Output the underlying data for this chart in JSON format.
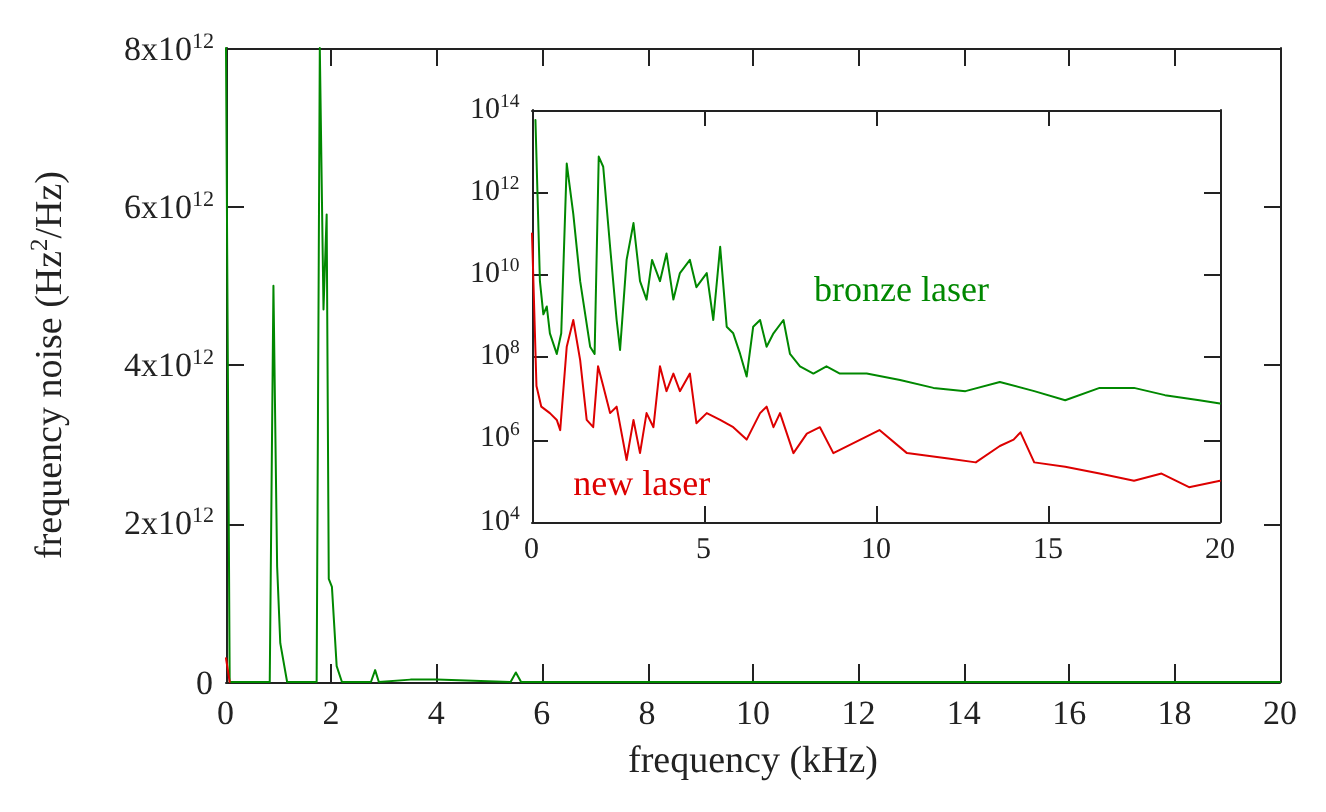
{
  "chart_data": [
    {
      "type": "line",
      "xlabel": "frequency (kHz)",
      "ylabel": "frequency noise (Hz$^{2}$/Hz)",
      "xlim": [
        0,
        20
      ],
      "ylim": [
        0,
        8000000000000.0
      ],
      "xticks": [
        0,
        2,
        4,
        6,
        8,
        10,
        12,
        14,
        16,
        18,
        20
      ],
      "yticks": [
        0,
        {
          "value": 2000000000000.0,
          "label": "2x10$^{12}$"
        },
        {
          "value": 4000000000000.0,
          "label": "4x10$^{12}$"
        },
        {
          "value": 6000000000000.0,
          "label": "6x10$^{12}$"
        },
        {
          "value": 8000000000000.0,
          "label": "8x10$^{12}$"
        }
      ],
      "grid": false,
      "legend": false,
      "marker": "none",
      "series": [
        {
          "color": "#008800",
          "x": [
            0,
            0.07,
            0.83,
            0.9,
            0.97,
            1.03,
            1.16,
            1.72,
            1.78,
            1.85,
            1.91,
            1.95,
            2.01,
            2.1,
            2.2,
            2.75,
            2.83,
            2.9,
            3.5,
            4,
            5.4,
            5.5,
            5.6,
            20
          ],
          "values": [
            8000000000000.0,
            0,
            0,
            5000000000000.0,
            1460000000000.0,
            490000000000.0,
            0,
            0,
            8000000000000.0,
            4700000000000.0,
            5900000000000.0,
            1300000000000.0,
            1200000000000.0,
            200000000000.0,
            0,
            0,
            150000000000.0,
            0,
            30000000000.0,
            30000000000.0,
            0,
            120000000000.0,
            0,
            0
          ]
        },
        {
          "color": "#dd0000",
          "x": [
            0,
            0.07
          ],
          "values": [
            300000000000.0,
            0
          ]
        }
      ]
    },
    {
      "type": "line",
      "log": true,
      "xlim": [
        0,
        20
      ],
      "ylim": [
        10000.0,
        100000000000000.0
      ],
      "xticks": [
        0,
        5,
        10,
        15,
        20
      ],
      "yticks": [
        {
          "value": 10000.0,
          "label": "10$^{4}$"
        },
        {
          "value": 1000000.0,
          "label": "10$^{6}$"
        },
        {
          "value": 100000000.0,
          "label": "10$^{8}$"
        },
        {
          "value": 10000000000.0,
          "label": "10$^{10}$"
        },
        {
          "value": 1000000000000.0,
          "label": "10$^{12}$"
        },
        {
          "value": 100000000000000.0,
          "label": "10$^{14}$"
        }
      ],
      "grid": false,
      "legend": false,
      "marker": "none",
      "series": [
        {
          "name": "bronze laser",
          "color": "#008800",
          "x": [
            0.1,
            0.23,
            0.33,
            0.43,
            0.52,
            0.72,
            0.85,
            1.01,
            1.2,
            1.4,
            1.69,
            1.82,
            1.94,
            2.07,
            2.27,
            2.46,
            2.56,
            2.75,
            2.95,
            3.14,
            3.33,
            3.49,
            3.72,
            3.91,
            4.11,
            4.3,
            4.59,
            4.78,
            5.08,
            5.27,
            5.47,
            5.66,
            5.85,
            6.05,
            6.24,
            6.43,
            6.63,
            6.82,
            7.02,
            7.31,
            7.5,
            7.79,
            8.18,
            8.56,
            8.95,
            9.73,
            10.7,
            11.67,
            12.6,
            13.6,
            14.6,
            15.5,
            16.5,
            17.5,
            18.4,
            19.4,
            20
          ],
          "values": [
            57000000000000.0,
            7000000000.0,
            1100000000.0,
            1700000000.0,
            380000000.0,
            120000000.0,
            380000000.0,
            5000000000000.0,
            300000000000.0,
            7000000000.0,
            180000000.0,
            120000000.0,
            7400000000000.0,
            4200000000000.0,
            48000000000.0,
            800000000.0,
            150000000.0,
            23000000000.0,
            180000000000.0,
            7000000000.0,
            2500000000.0,
            23000000000.0,
            7000000000.0,
            33000000000.0,
            2500000000.0,
            11000000000.0,
            23000000000.0,
            5000000000.0,
            11000000000.0,
            800000000.0,
            48000000000.0,
            550000000.0,
            380000000.0,
            120000000.0,
            34000000.0,
            550000000.0,
            800000000.0,
            180000000.0,
            380000000.0,
            800000000.0,
            120000000.0,
            60000000.0,
            40000000.0,
            60000000.0,
            40000000.0,
            40000000.0,
            28000000.0,
            18000000.0,
            15000000.0,
            25000000.0,
            15000000.0,
            9000000.0,
            18000000.0,
            18000000.0,
            12000000.0,
            9000000.0,
            7500000.0
          ]
        },
        {
          "name": "new laser",
          "color": "#dd0000",
          "x": [
            0,
            0.13,
            0.27,
            0.52,
            0.72,
            0.82,
            1.01,
            1.2,
            1.4,
            1.59,
            1.78,
            1.92,
            2.07,
            2.27,
            2.46,
            2.75,
            2.95,
            3.14,
            3.33,
            3.53,
            3.72,
            3.91,
            4.11,
            4.3,
            4.59,
            4.78,
            5.08,
            5.47,
            5.85,
            6.24,
            6.63,
            6.82,
            7.02,
            7.21,
            7.6,
            7.99,
            8.37,
            8.76,
            10.1,
            10.9,
            12.1,
            12.9,
            13.6,
            14.0,
            14.2,
            14.6,
            15.5,
            16.5,
            17.5,
            18.3,
            19.1,
            20
          ],
          "values": [
            100000000000.0,
            20000000.0,
            6300000.0,
            4400000.0,
            3000000.0,
            1700000.0,
            180000000.0,
            800000000.0,
            85000000.0,
            3000000.0,
            2000000.0,
            60000000.0,
            20000000.0,
            4400000.0,
            6300000.0,
            320000.0,
            3000000.0,
            470000.0,
            4400000.0,
            2000000.0,
            60000000.0,
            15000000.0,
            40000000.0,
            15000000.0,
            40000000.0,
            2500000.0,
            4400000.0,
            3000000.0,
            2000000.0,
            1000000.0,
            4400000.0,
            6300000.0,
            2000000.0,
            4400000.0,
            470000.0,
            1400000.0,
            2000000.0,
            470000.0,
            1700000.0,
            470000.0,
            350000.0,
            280000.0,
            700000.0,
            1000000.0,
            1500000.0,
            280000.0,
            220000.0,
            150000.0,
            100000.0,
            150000.0,
            70000.0,
            100000.0
          ]
        }
      ]
    }
  ]
}
